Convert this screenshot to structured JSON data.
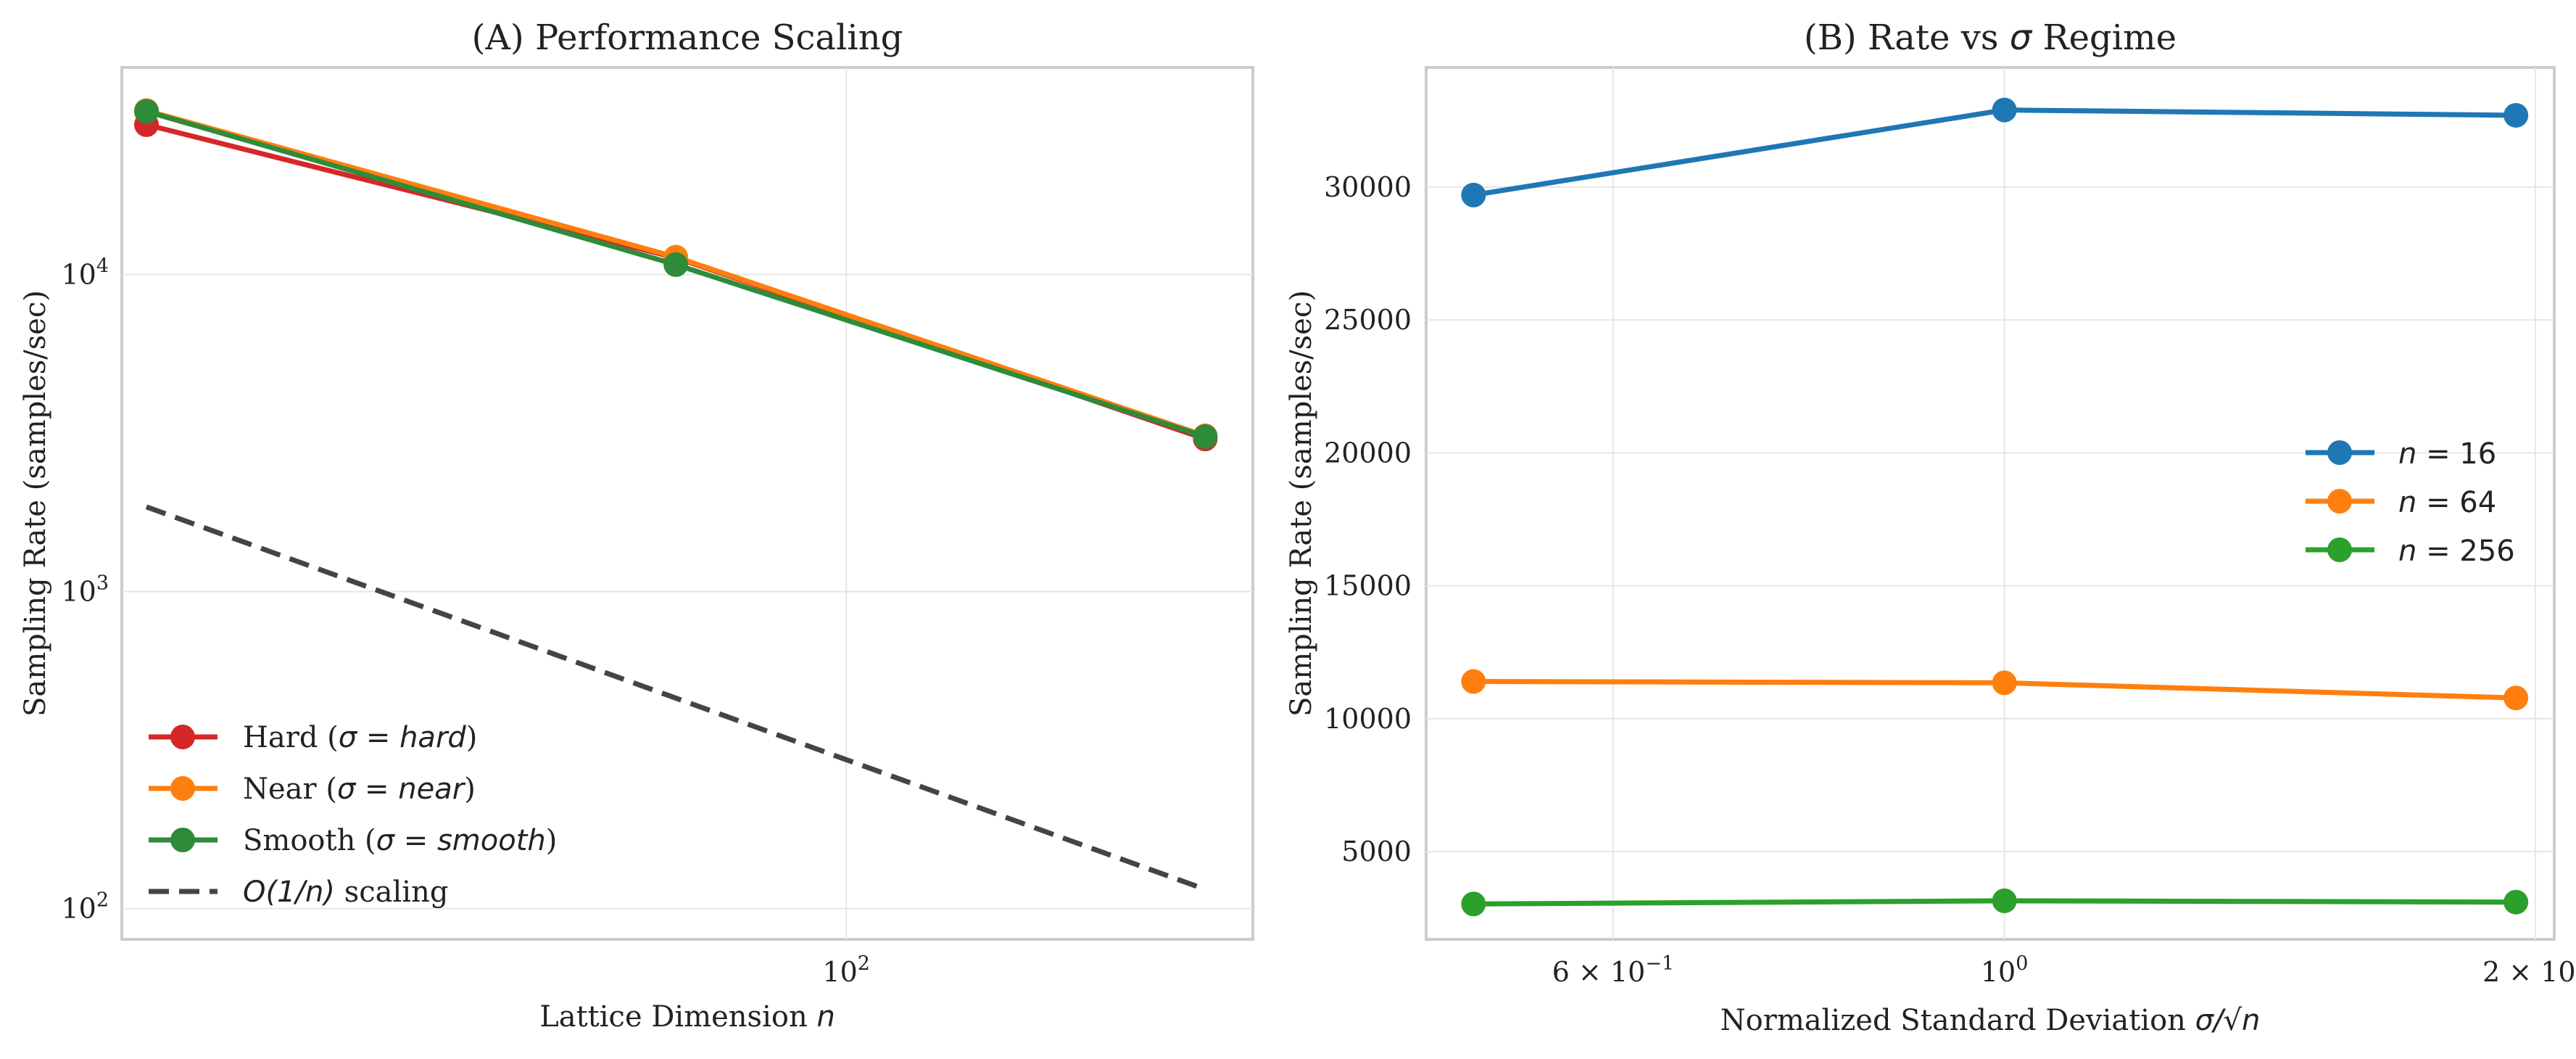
{
  "chart_data": [
    {
      "panel": "A",
      "type": "line",
      "title": "(A) Performance Scaling",
      "xlabel": "Lattice Dimension n",
      "ylabel": "Sampling Rate (samples/sec)",
      "xscale": "log",
      "yscale": "log",
      "xlim": [
        15,
        290
      ],
      "ylim": [
        80,
        45000
      ],
      "x_ticks": [
        {
          "value": 100,
          "label": "10^2"
        }
      ],
      "y_ticks": [
        {
          "value": 100,
          "label": "10^2"
        },
        {
          "value": 1000,
          "label": "10^3"
        },
        {
          "value": 10000,
          "label": "10^4"
        }
      ],
      "grid": true,
      "legend": {
        "position": "lower-left"
      },
      "x": [
        16,
        64,
        256
      ],
      "series": [
        {
          "name": "Hard (σ = hard)",
          "color": "#d62728",
          "style": "solid-marker",
          "values": [
            29700,
            11300,
            3030
          ]
        },
        {
          "name": "Near (σ = near)",
          "color": "#ff7f0e",
          "style": "solid-marker",
          "values": [
            32900,
            11350,
            3100
          ]
        },
        {
          "name": "Smooth (σ = smooth)",
          "color": "#2e8b3a",
          "style": "solid-marker",
          "values": [
            32700,
            10750,
            3080
          ]
        },
        {
          "name": "O(1/n) scaling",
          "color": "#444444",
          "style": "dashed",
          "x": [
            16,
            256
          ],
          "values": [
            1850,
            115
          ]
        }
      ]
    },
    {
      "panel": "B",
      "type": "line",
      "title": "(B) Rate vs σ Regime",
      "xlabel": "Normalized Standard Deviation σ/√n",
      "ylabel": "Sampling Rate (samples/sec)",
      "xscale": "log",
      "yscale": "linear",
      "xlim": [
        0.47,
        2.05
      ],
      "ylim": [
        1700,
        34500
      ],
      "x_ticks": [
        {
          "value": 0.6,
          "label": "6 × 10^−1"
        },
        {
          "value": 1,
          "label": "10^0"
        },
        {
          "value": 2,
          "label": "2 × 10^0"
        }
      ],
      "y_ticks": [
        5000,
        10000,
        15000,
        20000,
        25000,
        30000
      ],
      "grid": true,
      "legend": {
        "position": "center-right"
      },
      "x": [
        0.5,
        1.0,
        1.95
      ],
      "series": [
        {
          "name": "n = 16",
          "color": "#1f77b4",
          "values": [
            29700,
            32900,
            32700
          ]
        },
        {
          "name": "n = 64",
          "color": "#ff7f0e",
          "values": [
            11400,
            11350,
            10780
          ]
        },
        {
          "name": "n = 256",
          "color": "#2ca02c",
          "values": [
            3030,
            3150,
            3100
          ]
        }
      ]
    }
  ]
}
